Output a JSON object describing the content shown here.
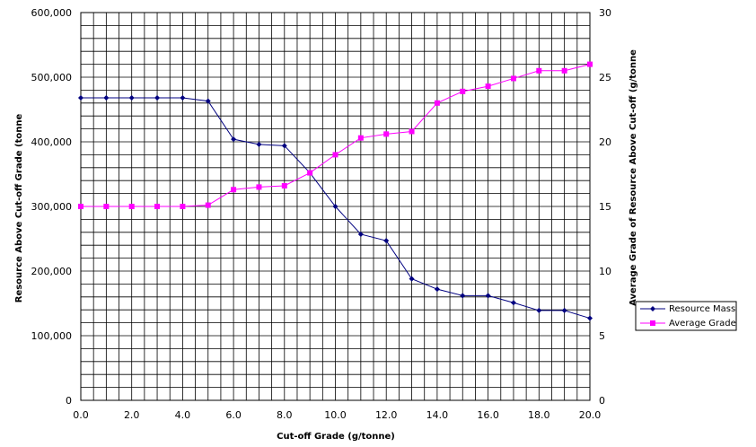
{
  "chart_data": {
    "type": "line",
    "x": [
      0,
      1,
      2,
      3,
      4,
      5,
      6,
      7,
      8,
      9,
      10,
      11,
      12,
      13,
      14,
      15,
      16,
      17,
      18,
      19,
      20
    ],
    "xlabel": "Cut-off Grade (g/tonne)",
    "ylabel": "Resource Above Cut-off Grade (tonne",
    "y2label": "Average Grade of Resource Above Cut-off (g/tonne",
    "xlim": [
      0,
      20
    ],
    "ylim": [
      0,
      600000
    ],
    "y2lim": [
      0,
      30
    ],
    "x_tick_labels": [
      "0.0",
      "2.0",
      "4.0",
      "6.0",
      "8.0",
      "10.0",
      "12.0",
      "14.0",
      "16.0",
      "18.0",
      "20.0"
    ],
    "y_tick_labels": [
      "0",
      "100,000",
      "200,000",
      "300,000",
      "400,000",
      "500,000",
      "600,000"
    ],
    "y2_tick_labels": [
      "0",
      "5",
      "10",
      "15",
      "20",
      "25",
      "30"
    ],
    "grid": true,
    "legend_position": "bottom-right",
    "series": [
      {
        "name": "Resource Mass",
        "axis": "left",
        "color": "#000080",
        "marker": "diamond",
        "values": [
          468000,
          468000,
          468000,
          468000,
          468000,
          463000,
          404000,
          396000,
          394000,
          352000,
          300000,
          257000,
          247000,
          188000,
          172000,
          162000,
          162000,
          151000,
          139000,
          139000,
          127000
        ]
      },
      {
        "name": "Average Grade",
        "axis": "right",
        "color": "#ff00ff",
        "marker": "square",
        "values": [
          15.0,
          15.0,
          15.0,
          15.0,
          15.0,
          15.1,
          16.3,
          16.5,
          16.6,
          17.6,
          19.0,
          20.3,
          20.6,
          20.8,
          23.0,
          23.9,
          24.3,
          24.9,
          25.5,
          25.5,
          26.0
        ]
      }
    ]
  }
}
